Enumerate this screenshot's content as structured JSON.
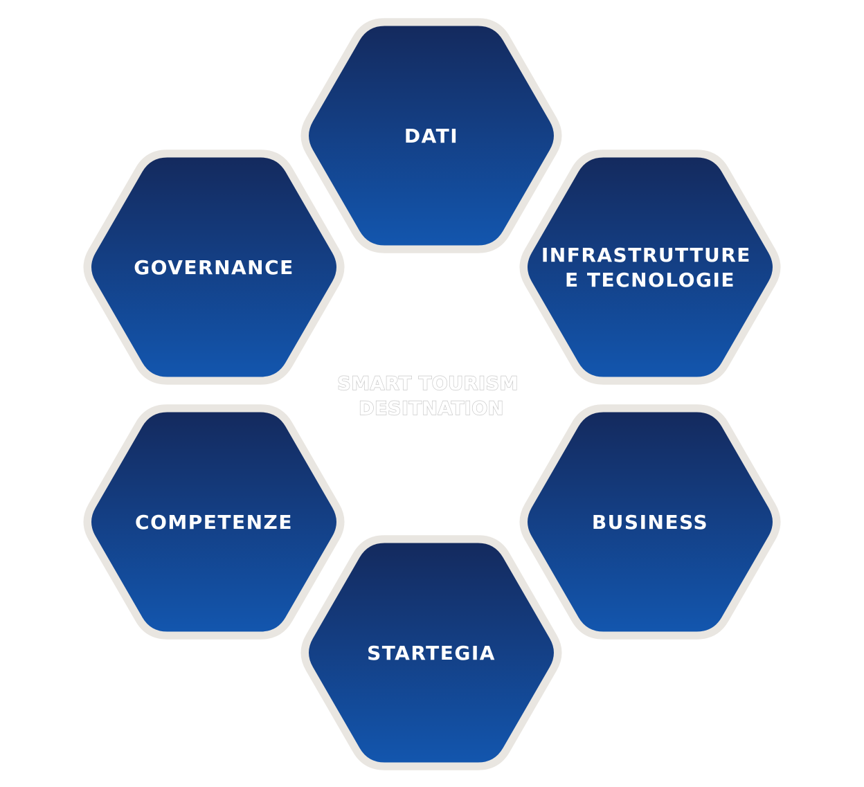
{
  "center": {
    "lines": [
      "SMART TOURISM",
      "DESITNATION"
    ]
  },
  "nodes": [
    {
      "id": "dati",
      "lines": [
        "DATI"
      ]
    },
    {
      "id": "infrastrutture",
      "lines": [
        "INFRASTRUTTURE",
        "E TECNOLOGIE"
      ]
    },
    {
      "id": "business",
      "lines": [
        "BUSINESS"
      ]
    },
    {
      "id": "startegia",
      "lines": [
        "STARTEGIA"
      ]
    },
    {
      "id": "competenze",
      "lines": [
        "COMPETENZE"
      ]
    },
    {
      "id": "governance",
      "lines": [
        "GOVERNANCE"
      ]
    }
  ],
  "colors": {
    "hex_top": "#142a5e",
    "hex_bottom": "#1356ae",
    "hex_border": "#e9e6e1",
    "label": "#ffffff",
    "center_label": "#ffffff",
    "center_outline": "#c9c9c9"
  }
}
